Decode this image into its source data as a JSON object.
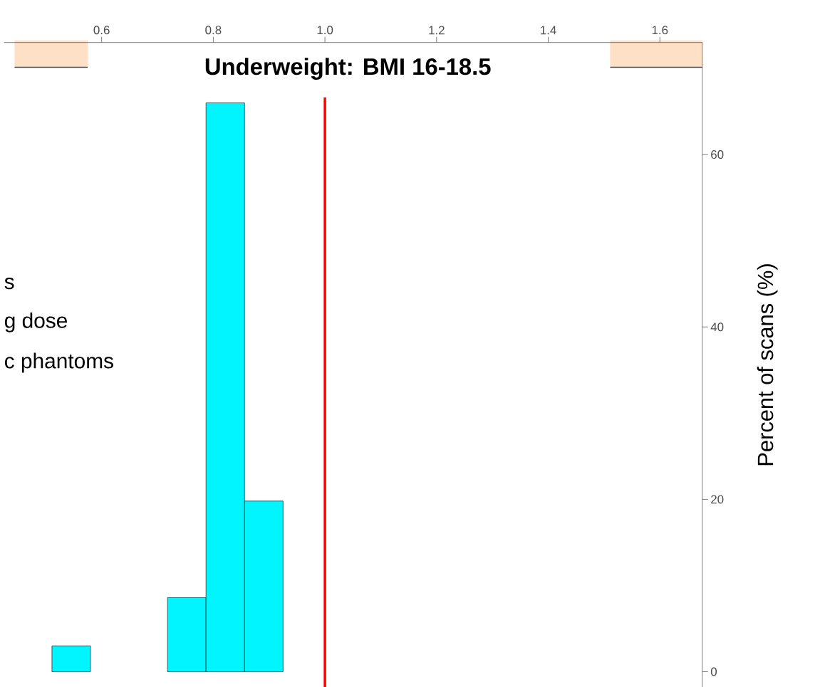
{
  "chart_data": {
    "type": "histogram",
    "title": "Underweight: BMI  16-18.5",
    "ylabel": "Percent of scans (%)",
    "bins": [
      0.511,
      0.58,
      0.649,
      0.718,
      0.787,
      0.856,
      0.925
    ],
    "values": [
      3,
      0,
      0,
      8.6,
      66,
      19.8
    ],
    "color": "#00f5ff",
    "xlim": [
      0.425,
      1.676
    ],
    "ylim": [
      -1.8,
      73
    ],
    "xticks": [
      0.6,
      0.8,
      {
        "value": 1.0,
        "label": "1.0"
      },
      1.2,
      1.4,
      1.6
    ],
    "yticks": [
      0,
      20,
      40,
      60
    ],
    "ref_lines": [
      {
        "axis": "x",
        "value": 1.0,
        "color": "#ff0000"
      }
    ],
    "annotations": [
      "s",
      "g dose",
      "c phantoms"
    ]
  }
}
